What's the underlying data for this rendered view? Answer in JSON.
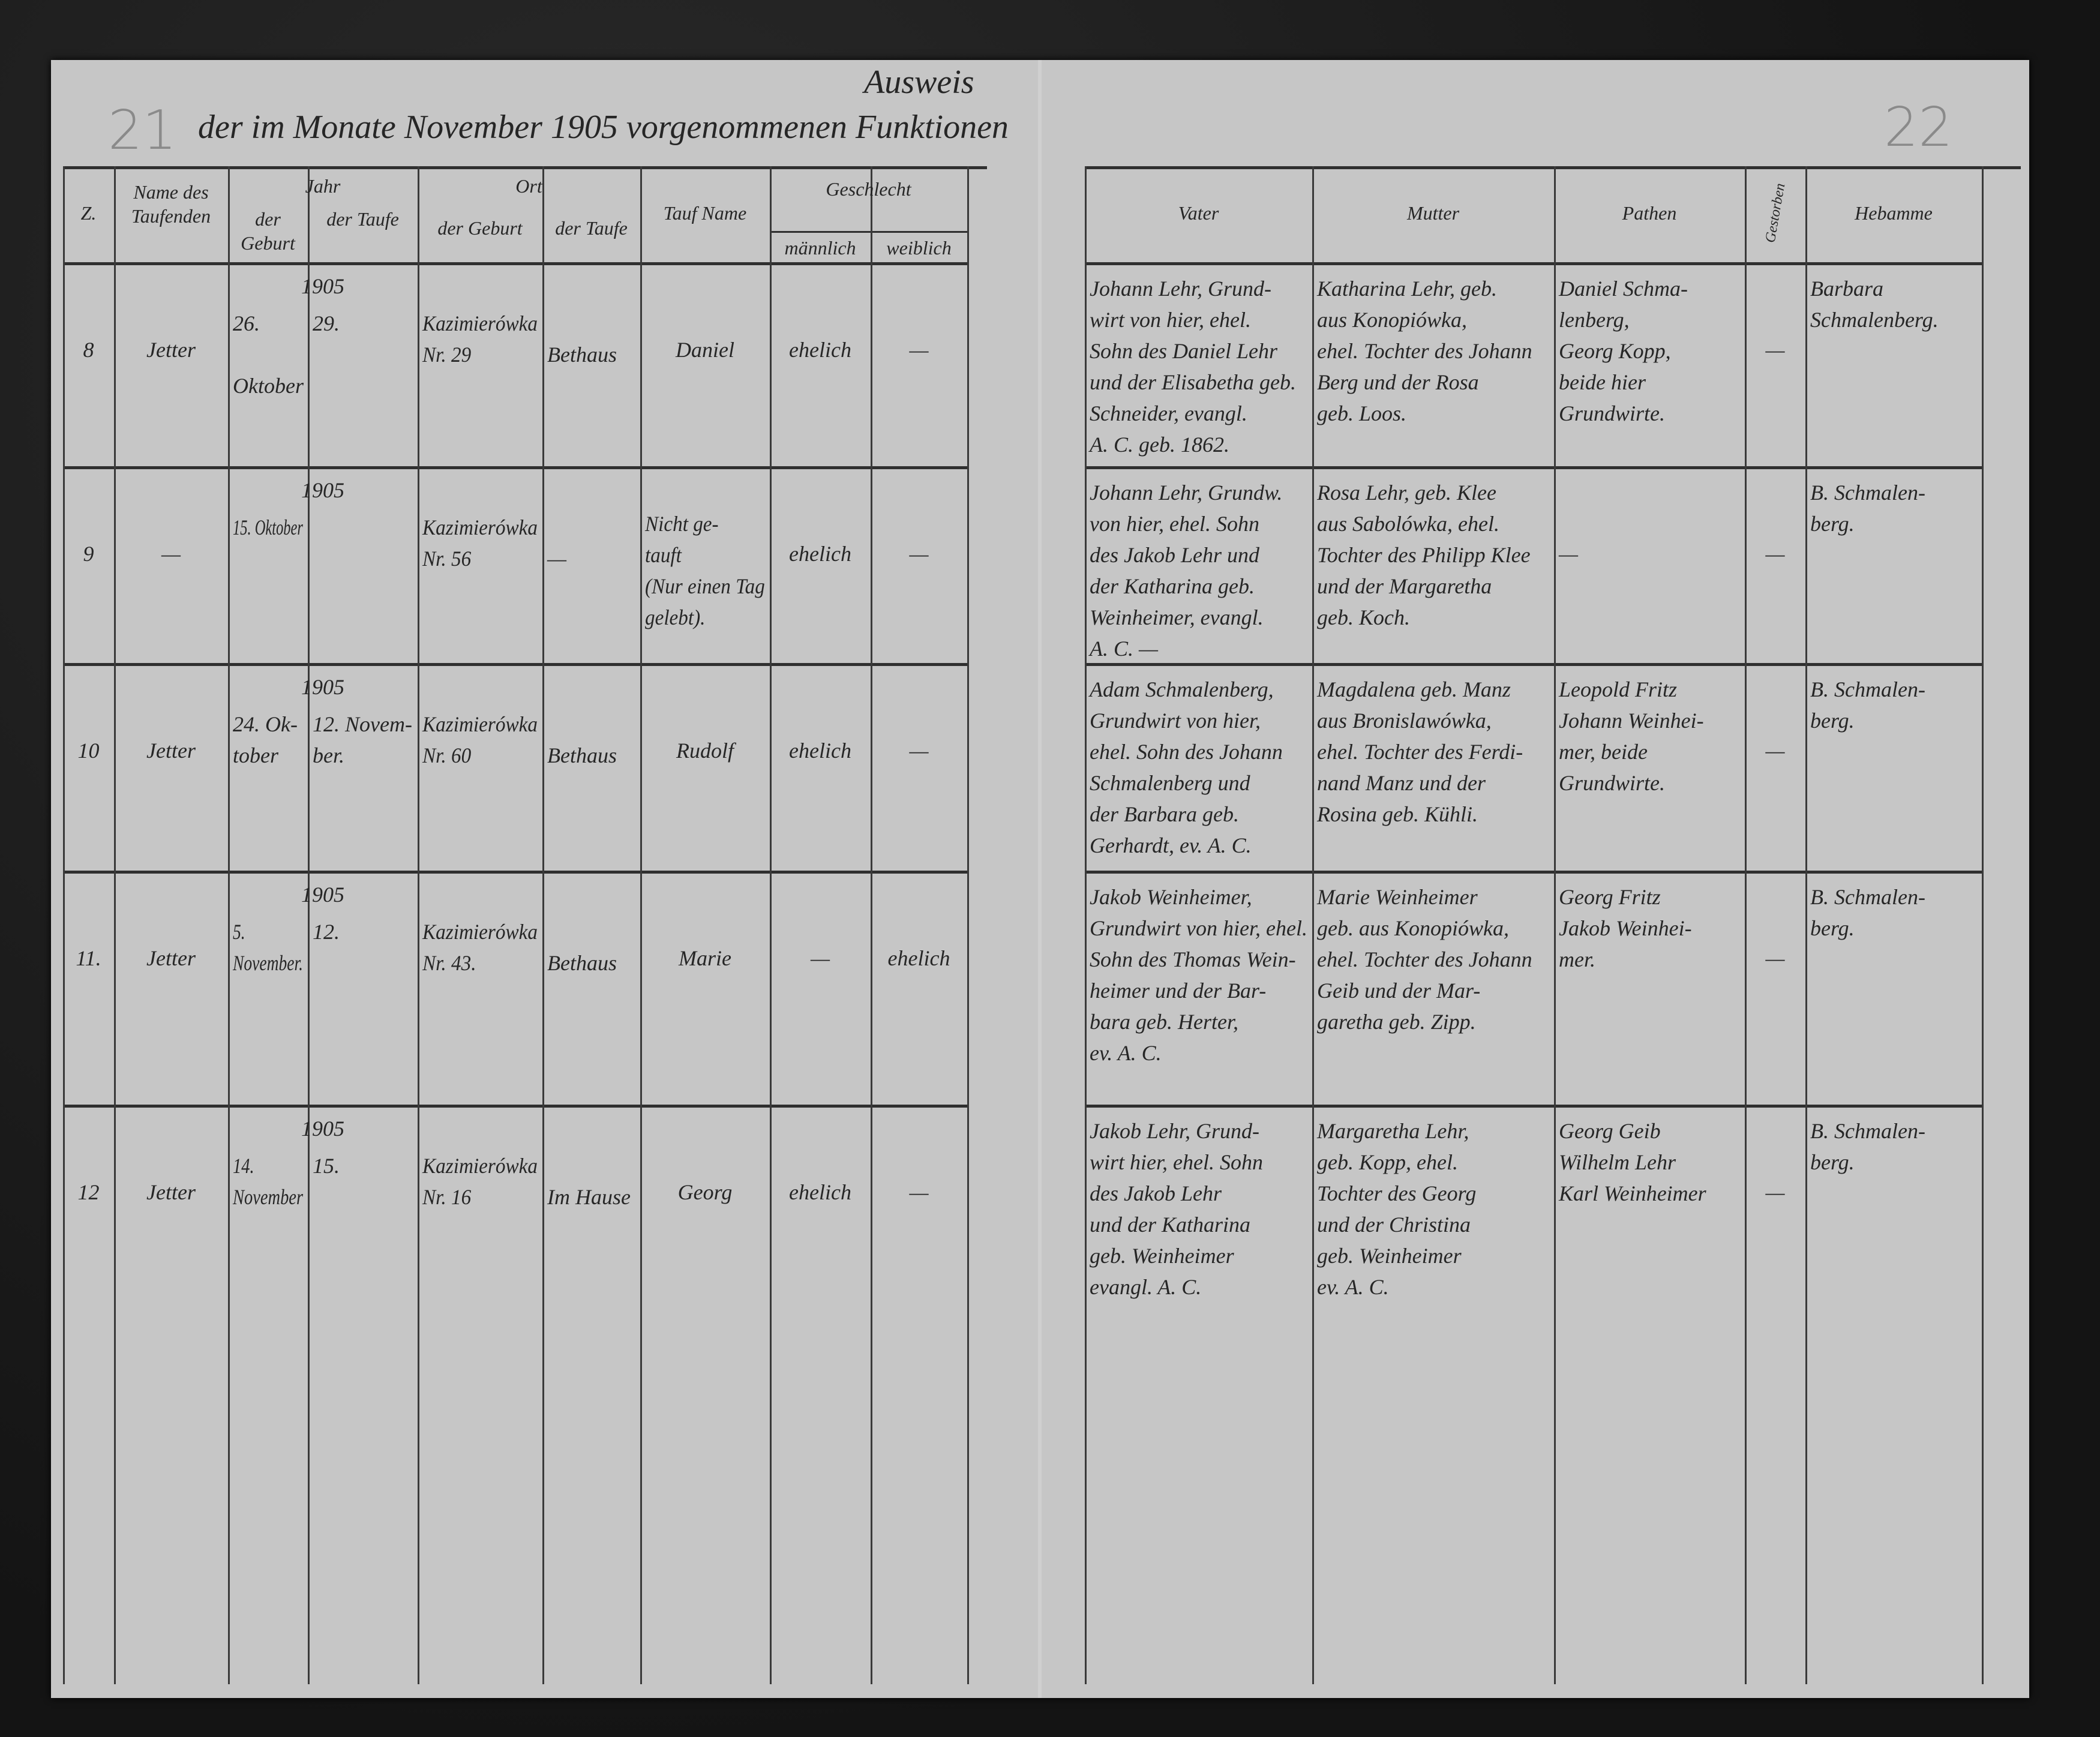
{
  "page": {
    "title": "Ausweis",
    "subtitle": "der im Monate November 1905 vorgenommenen Funktionen",
    "left_page_number": "21",
    "right_page_number": "22"
  },
  "headers": {
    "nr": "Z.",
    "name": "Name des Taufenden",
    "jahr": "Jahr",
    "jahr_geburt": "der Geburt",
    "jahr_taufe": "der Taufe",
    "ort": "Ort",
    "ort_geburt": "der Geburt",
    "ort_taufe": "der Taufe",
    "taufname": "Tauf Name",
    "geschlecht": "Geschlecht",
    "maennlich": "männlich",
    "weiblich": "weiblich",
    "vater": "Vater",
    "mutter": "Mutter",
    "pathen": "Pathen",
    "narrow": "Gestorben",
    "hebamme": "Hebamme"
  },
  "rows": [
    {
      "nr": "8",
      "name": "Jetter",
      "year": "1905",
      "birth": "26.\n\nOktober",
      "baptism": "29.",
      "birthplace": "Kazimierówka\nNr. 29",
      "baptism_place": "\nBethaus",
      "given_name": "Daniel",
      "male": "ehelich",
      "female": "—",
      "father": "Johann Lehr, Grund-\nwirt von hier, ehel.\nSohn des Daniel Lehr\nund der Elisabetha geb.\nSchneider, evangl.\nA. C. geb. 1862.",
      "mother": "Katharina Lehr, geb.\naus Konopiówka,\nehel. Tochter des Johann\nBerg und der Rosa\ngeb. Loos.",
      "godparents": "Daniel Schma-\nlenberg,\nGeorg Kopp,\nbeide hier\nGrundwirte.",
      "narrow": "—",
      "midwife": "Barbara\nSchmalenberg."
    },
    {
      "nr": "9",
      "name": "—",
      "year": "1905",
      "birth": "15. Oktober",
      "baptism": "",
      "birthplace": "Kazimierówka\nNr. 56",
      "baptism_place": "\n—",
      "given_name": "Nicht ge-\ntauft\n(Nur einen Tag\ngelebt).",
      "male": "ehelich",
      "female": "—",
      "father": "Johann Lehr, Grundw.\nvon hier, ehel. Sohn\ndes Jakob Lehr und\nder Katharina geb.\nWeinheimer, evangl.\nA. C. —",
      "mother": "Rosa Lehr, geb. Klee\naus Sabolówka, ehel.\nTochter des Philipp Klee\nund der Margaretha\ngeb. Koch.",
      "godparents": "—",
      "narrow": "—",
      "midwife": "B. Schmalen-\nberg."
    },
    {
      "nr": "10",
      "name": "Jetter",
      "year": "1905",
      "birth": "24. Ok-\ntober",
      "baptism": "12. Novem-\nber.",
      "birthplace": "Kazimierówka\nNr. 60",
      "baptism_place": "\nBethaus",
      "given_name": "Rudolf",
      "male": "ehelich",
      "female": "—",
      "father": "Adam Schmalenberg,\nGrundwirt von hier,\nehel. Sohn des Johann\nSchmalenberg und\nder Barbara geb.\nGerhardt, ev. A. C.",
      "mother": "Magdalena geb. Manz\naus Bronislawówka,\nehel. Tochter des Ferdi-\nnand Manz und der\nRosina geb. Kühli.",
      "godparents": "Leopold Fritz\nJohann Weinhei-\nmer, beide\nGrundwirte.",
      "narrow": "—",
      "midwife": "B. Schmalen-\nberg."
    },
    {
      "nr": "11.",
      "name": "Jetter",
      "year": "1905",
      "birth": "5.\nNovember.",
      "baptism": "12.",
      "birthplace": "Kazimierówka\nNr. 43.",
      "baptism_place": "\nBethaus",
      "given_name": "Marie",
      "male": "—",
      "female": "ehelich",
      "father": "Jakob Weinheimer,\nGrundwirt von hier, ehel.\nSohn des Thomas Wein-\nheimer und der Bar-\nbara geb. Herter,\nev. A. C.",
      "mother": "Marie Weinheimer\ngeb. aus Konopiówka,\nehel. Tochter des Johann\nGeib und der Mar-\ngaretha geb. Zipp.",
      "godparents": "Georg Fritz\nJakob Weinhei-\nmer.",
      "narrow": "—",
      "midwife": "B. Schmalen-\nberg."
    },
    {
      "nr": "12",
      "name": "Jetter",
      "year": "1905",
      "birth": "14.\nNovember",
      "baptism": "15.",
      "birthplace": "Kazimierówka\nNr. 16",
      "baptism_place": "\nIm Hause",
      "given_name": "Georg",
      "male": "ehelich",
      "female": "—",
      "father": "Jakob Lehr, Grund-\nwirt hier, ehel. Sohn\ndes Jakob Lehr\nund der Katharina\ngeb. Weinheimer\nevangl. A. C.",
      "mother": "Margaretha Lehr,\ngeb. Kopp, ehel.\nTochter des Georg\nund der Christina\ngeb. Weinheimer\nev. A. C.",
      "godparents": "Georg Geib\nWilhelm Lehr\nKarl Weinheimer",
      "narrow": "—",
      "midwife": "B. Schmalen-\nberg."
    }
  ]
}
